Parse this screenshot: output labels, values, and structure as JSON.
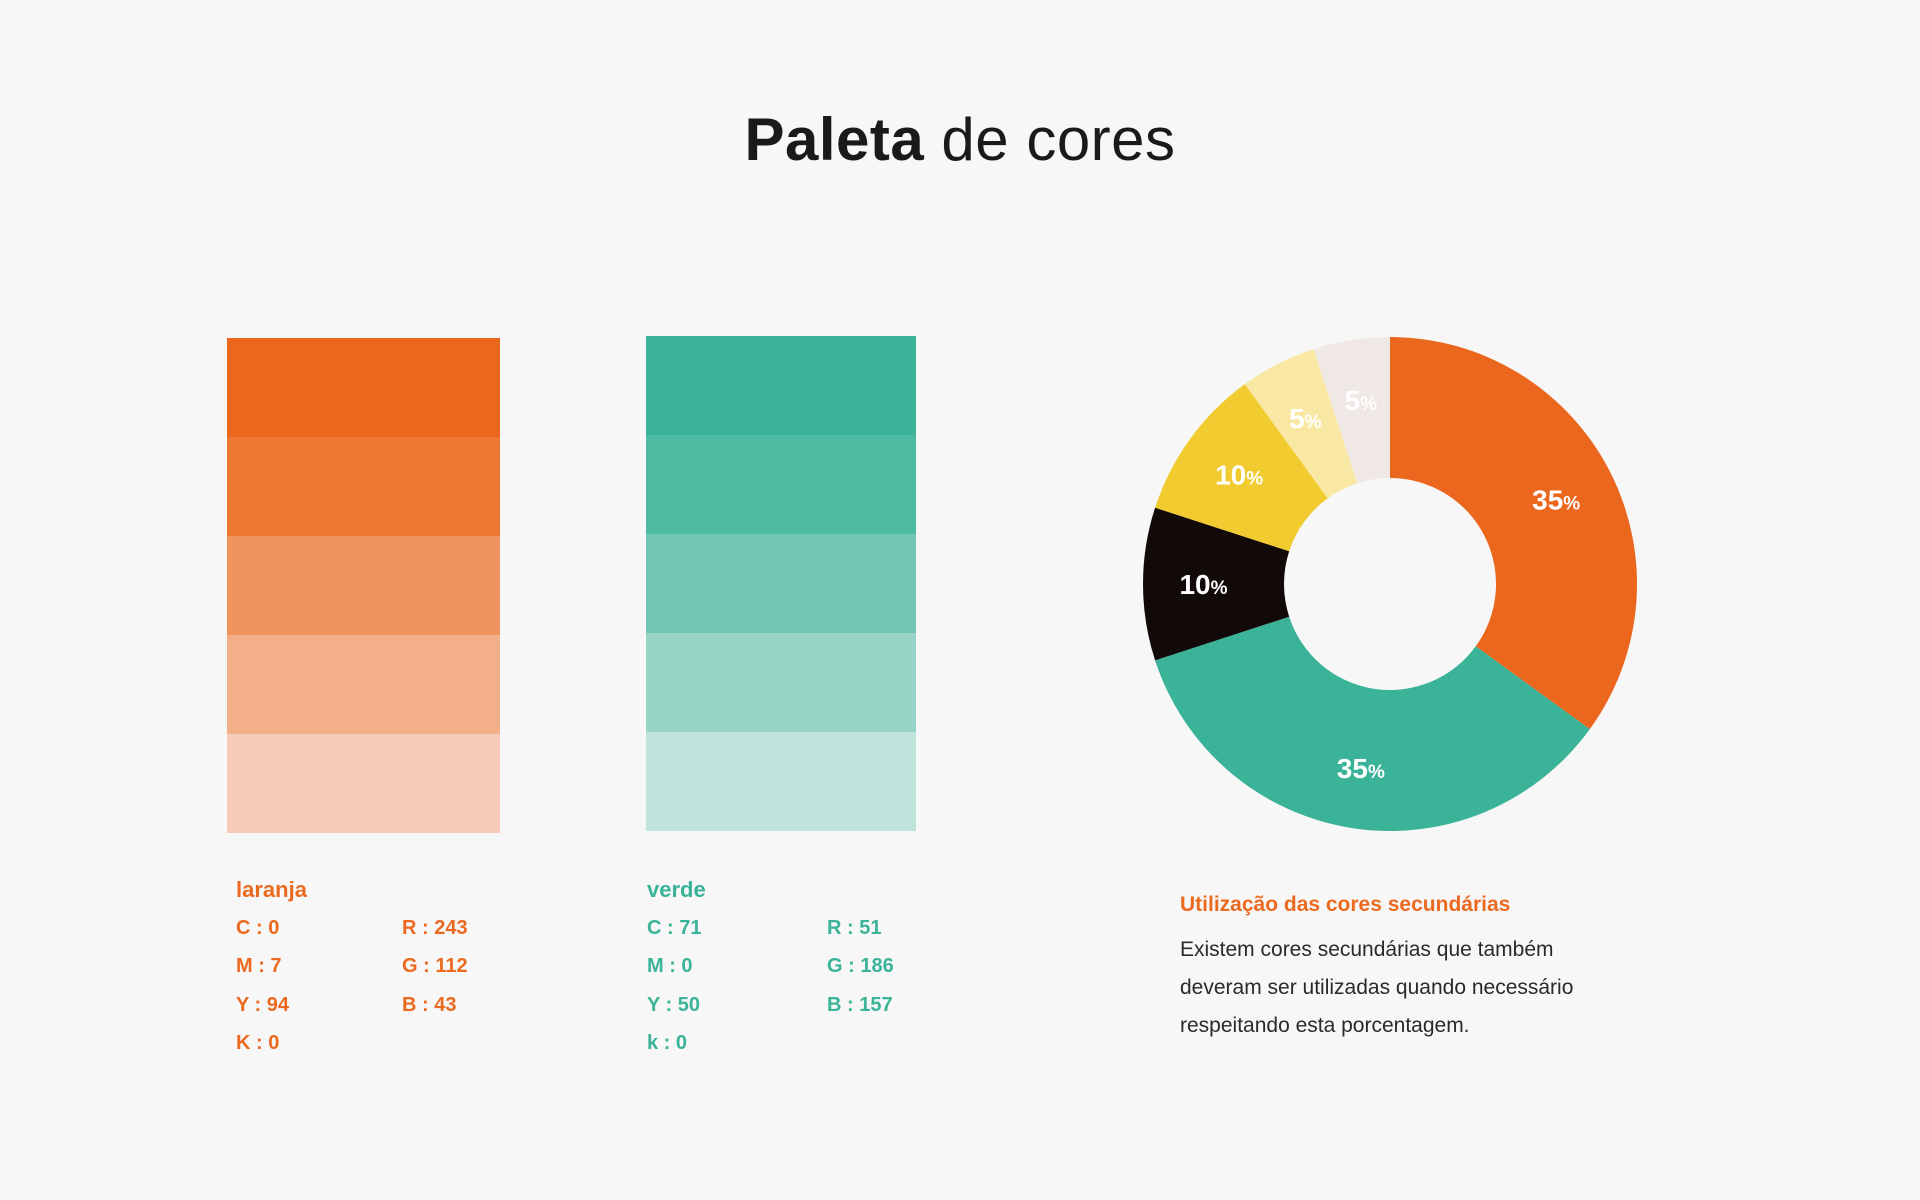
{
  "title": {
    "bold": "Paleta",
    "light": " de cores"
  },
  "palettes": [
    {
      "name": "laranja",
      "color": "#ec6a20",
      "shades": [
        "#ec671e",
        "#ee7734",
        "#f0935f",
        "#f3ae8a",
        "#f6cbb8"
      ],
      "cmyk": [
        "C : 0",
        "M : 7",
        "Y : 94",
        "K : 0"
      ],
      "rgb": [
        "R : 243",
        "G : 112",
        "B : 43"
      ]
    },
    {
      "name": "verde",
      "color": "#3bb398",
      "shades": [
        "#3ab398",
        "#4dbaa2",
        "#72c7b4",
        "#99d5c7",
        "#bfe4db"
      ],
      "cmyk": [
        "C : 71",
        "M : 0",
        "Y : 50",
        "k : 0"
      ],
      "rgb": [
        "R : 51",
        "G : 186",
        "B : 157"
      ]
    }
  ],
  "chart_data": {
    "type": "pie",
    "donut": true,
    "values": [
      35,
      35,
      10,
      10,
      5,
      5
    ],
    "labels": [
      "35%",
      "35%",
      "10%",
      "10%",
      "5%",
      "5%"
    ],
    "colors": [
      "#ec671e",
      "#3ab398",
      "#120a08",
      "#f2cb30",
      "#f9e7a4",
      "#efe8e5"
    ]
  },
  "note": {
    "title": "Utilização das cores secundárias",
    "lines": [
      "Existem cores secundárias que também",
      "deveram ser utilizadas quando necessário",
      "respeitando esta porcentagem."
    ]
  }
}
